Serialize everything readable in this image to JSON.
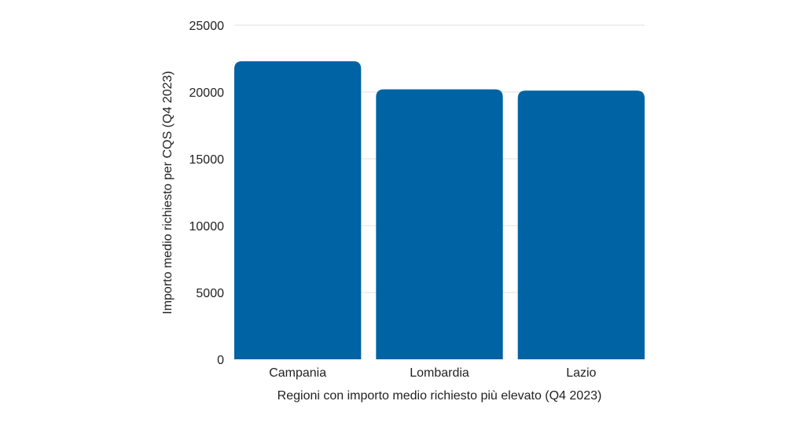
{
  "chart_data": {
    "type": "bar",
    "title": "",
    "categories": [
      "Campania",
      "Lombardia",
      "Lazio"
    ],
    "values": [
      22300,
      20200,
      20100
    ],
    "xlabel": "Regioni con importo medio richiesto più elevato (Q4 2023)",
    "ylabel": "Importo medio richiesto per CQS (Q4 2023)",
    "ylim": [
      0,
      25000
    ],
    "yticks": [
      0,
      5000,
      10000,
      15000,
      20000,
      25000
    ],
    "grid": true,
    "bar_color": "#0063A3"
  }
}
